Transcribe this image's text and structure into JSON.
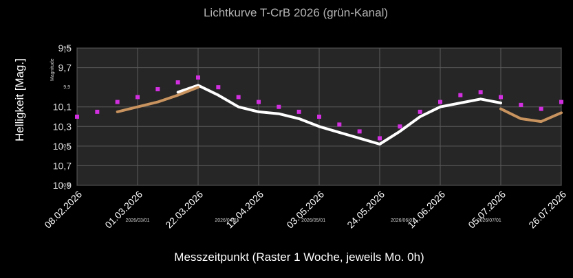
{
  "chart_data": {
    "type": "scatter",
    "title": "Lichtkurve T-CrB 2026 (grün-Kanal)",
    "xlabel": "Messzeitpunkt (Raster 1 Woche, jeweils Mo. 0h)",
    "ylabel": "Helligkeit [Mag.]",
    "inner_ylabel": "Magnitude",
    "y_inverted": true,
    "ylim": [
      10.9,
      9.5
    ],
    "xlim": [
      "2026-02-08",
      "2026-07-26"
    ],
    "grid": true,
    "y_ticks": [
      "9,5",
      "9,7",
      "10,1",
      "10,3",
      "10,5",
      "10,7",
      "10,9"
    ],
    "x_ticks": [
      "08.02.2026",
      "01.03.2026",
      "22.03.2026",
      "12.04.2026",
      "03.05.2026",
      "24.05.2026",
      "14.06.2026",
      "05.07.2026",
      "26.07.2026"
    ],
    "inner_y_ticks": [
      "9,5",
      "9,9",
      "10,5",
      "10,9"
    ],
    "inner_x_ticks": [
      "2026/03/01",
      "2026/04/01",
      "2026/05/01",
      "2026/06/01",
      "2026/07/01"
    ],
    "series": [
      {
        "style": "scatter-squares",
        "color": "#d22fe0",
        "x": [
          "2026-02-08",
          "2026-02-15",
          "2026-02-22",
          "2026-03-01",
          "2026-03-08",
          "2026-03-15",
          "2026-03-22",
          "2026-03-29",
          "2026-04-05",
          "2026-04-12",
          "2026-04-19",
          "2026-04-26",
          "2026-05-03",
          "2026-05-10",
          "2026-05-17",
          "2026-05-24",
          "2026-05-31",
          "2026-06-07",
          "2026-06-14",
          "2026-06-21",
          "2026-06-28",
          "2026-07-05",
          "2026-07-12",
          "2026-07-19",
          "2026-07-26"
        ],
        "y": [
          10.2,
          10.15,
          10.05,
          10.0,
          9.92,
          9.85,
          9.8,
          9.9,
          10.0,
          10.05,
          10.1,
          10.15,
          10.2,
          10.28,
          10.35,
          10.42,
          10.3,
          10.15,
          10.05,
          9.98,
          9.95,
          10.0,
          10.08,
          10.12,
          10.05
        ]
      },
      {
        "style": "smoothed-line",
        "color": "#ffffff",
        "x": [
          "2026-03-15",
          "2026-03-22",
          "2026-03-29",
          "2026-04-05",
          "2026-04-12",
          "2026-04-19",
          "2026-04-26",
          "2026-05-03",
          "2026-05-10",
          "2026-05-17",
          "2026-05-24",
          "2026-05-31",
          "2026-06-07",
          "2026-06-14",
          "2026-06-21",
          "2026-06-28",
          "2026-07-05"
        ],
        "y": [
          9.95,
          9.88,
          9.98,
          10.1,
          10.15,
          10.17,
          10.22,
          10.3,
          10.36,
          10.42,
          10.48,
          10.35,
          10.2,
          10.1,
          10.06,
          10.02,
          10.06
        ]
      },
      {
        "style": "smoothed-line",
        "color": "#c8935e",
        "x": [
          "2026-02-22",
          "2026-03-01",
          "2026-03-08",
          "2026-03-15",
          "2026-03-22"
        ],
        "y": [
          10.15,
          10.1,
          10.05,
          9.98,
          9.9
        ]
      },
      {
        "style": "smoothed-line",
        "color": "#c8935e",
        "x": [
          "2026-07-05",
          "2026-07-12",
          "2026-07-19",
          "2026-07-26"
        ],
        "y": [
          10.12,
          10.22,
          10.25,
          10.16
        ]
      }
    ]
  }
}
